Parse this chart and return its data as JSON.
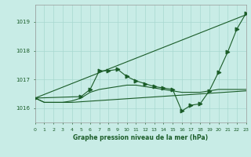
{
  "bg_color": "#c8ece6",
  "grid_color": "#a8d8d0",
  "line_color": "#1a5c28",
  "title": "Graphe pression niveau de la mer (hPa)",
  "xlim": [
    0,
    23
  ],
  "ylim": [
    1015.5,
    1019.6
  ],
  "yticks": [
    1016,
    1017,
    1018,
    1019
  ],
  "xticks": [
    0,
    1,
    2,
    3,
    4,
    5,
    6,
    7,
    8,
    9,
    10,
    11,
    12,
    13,
    14,
    15,
    16,
    17,
    18,
    19,
    20,
    21,
    22,
    23
  ],
  "line1_x": [
    0,
    1,
    2,
    3,
    4,
    23
  ],
  "line1_y": [
    1016.35,
    1016.2,
    1016.2,
    1016.2,
    1016.2,
    1016.6
  ],
  "line2_x": [
    0,
    1,
    2,
    3,
    4,
    5,
    6,
    7,
    8,
    9,
    10,
    11,
    12,
    13,
    14,
    15,
    16,
    17,
    18,
    19,
    20,
    21,
    22,
    23
  ],
  "line2_y": [
    1016.35,
    1016.2,
    1016.2,
    1016.2,
    1016.25,
    1016.35,
    1016.55,
    1016.65,
    1016.7,
    1016.75,
    1016.8,
    1016.8,
    1016.75,
    1016.7,
    1016.65,
    1016.6,
    1016.55,
    1016.55,
    1016.55,
    1016.6,
    1016.65,
    1016.65,
    1016.65,
    1016.65
  ],
  "line3_x": [
    0,
    5,
    6,
    7,
    8,
    9,
    10,
    11,
    12,
    13,
    14,
    15,
    16,
    17,
    18,
    19,
    20,
    21,
    22,
    23
  ],
  "line3_y": [
    1016.35,
    1016.4,
    1016.65,
    1017.3,
    1017.3,
    1017.35,
    1017.1,
    1016.95,
    1016.85,
    1016.75,
    1016.7,
    1016.65,
    1015.9,
    1016.1,
    1016.15,
    1016.6,
    1017.25,
    1017.95,
    1018.75,
    1019.3
  ],
  "line4_x": [
    0,
    23
  ],
  "line4_y": [
    1016.35,
    1019.25
  ]
}
